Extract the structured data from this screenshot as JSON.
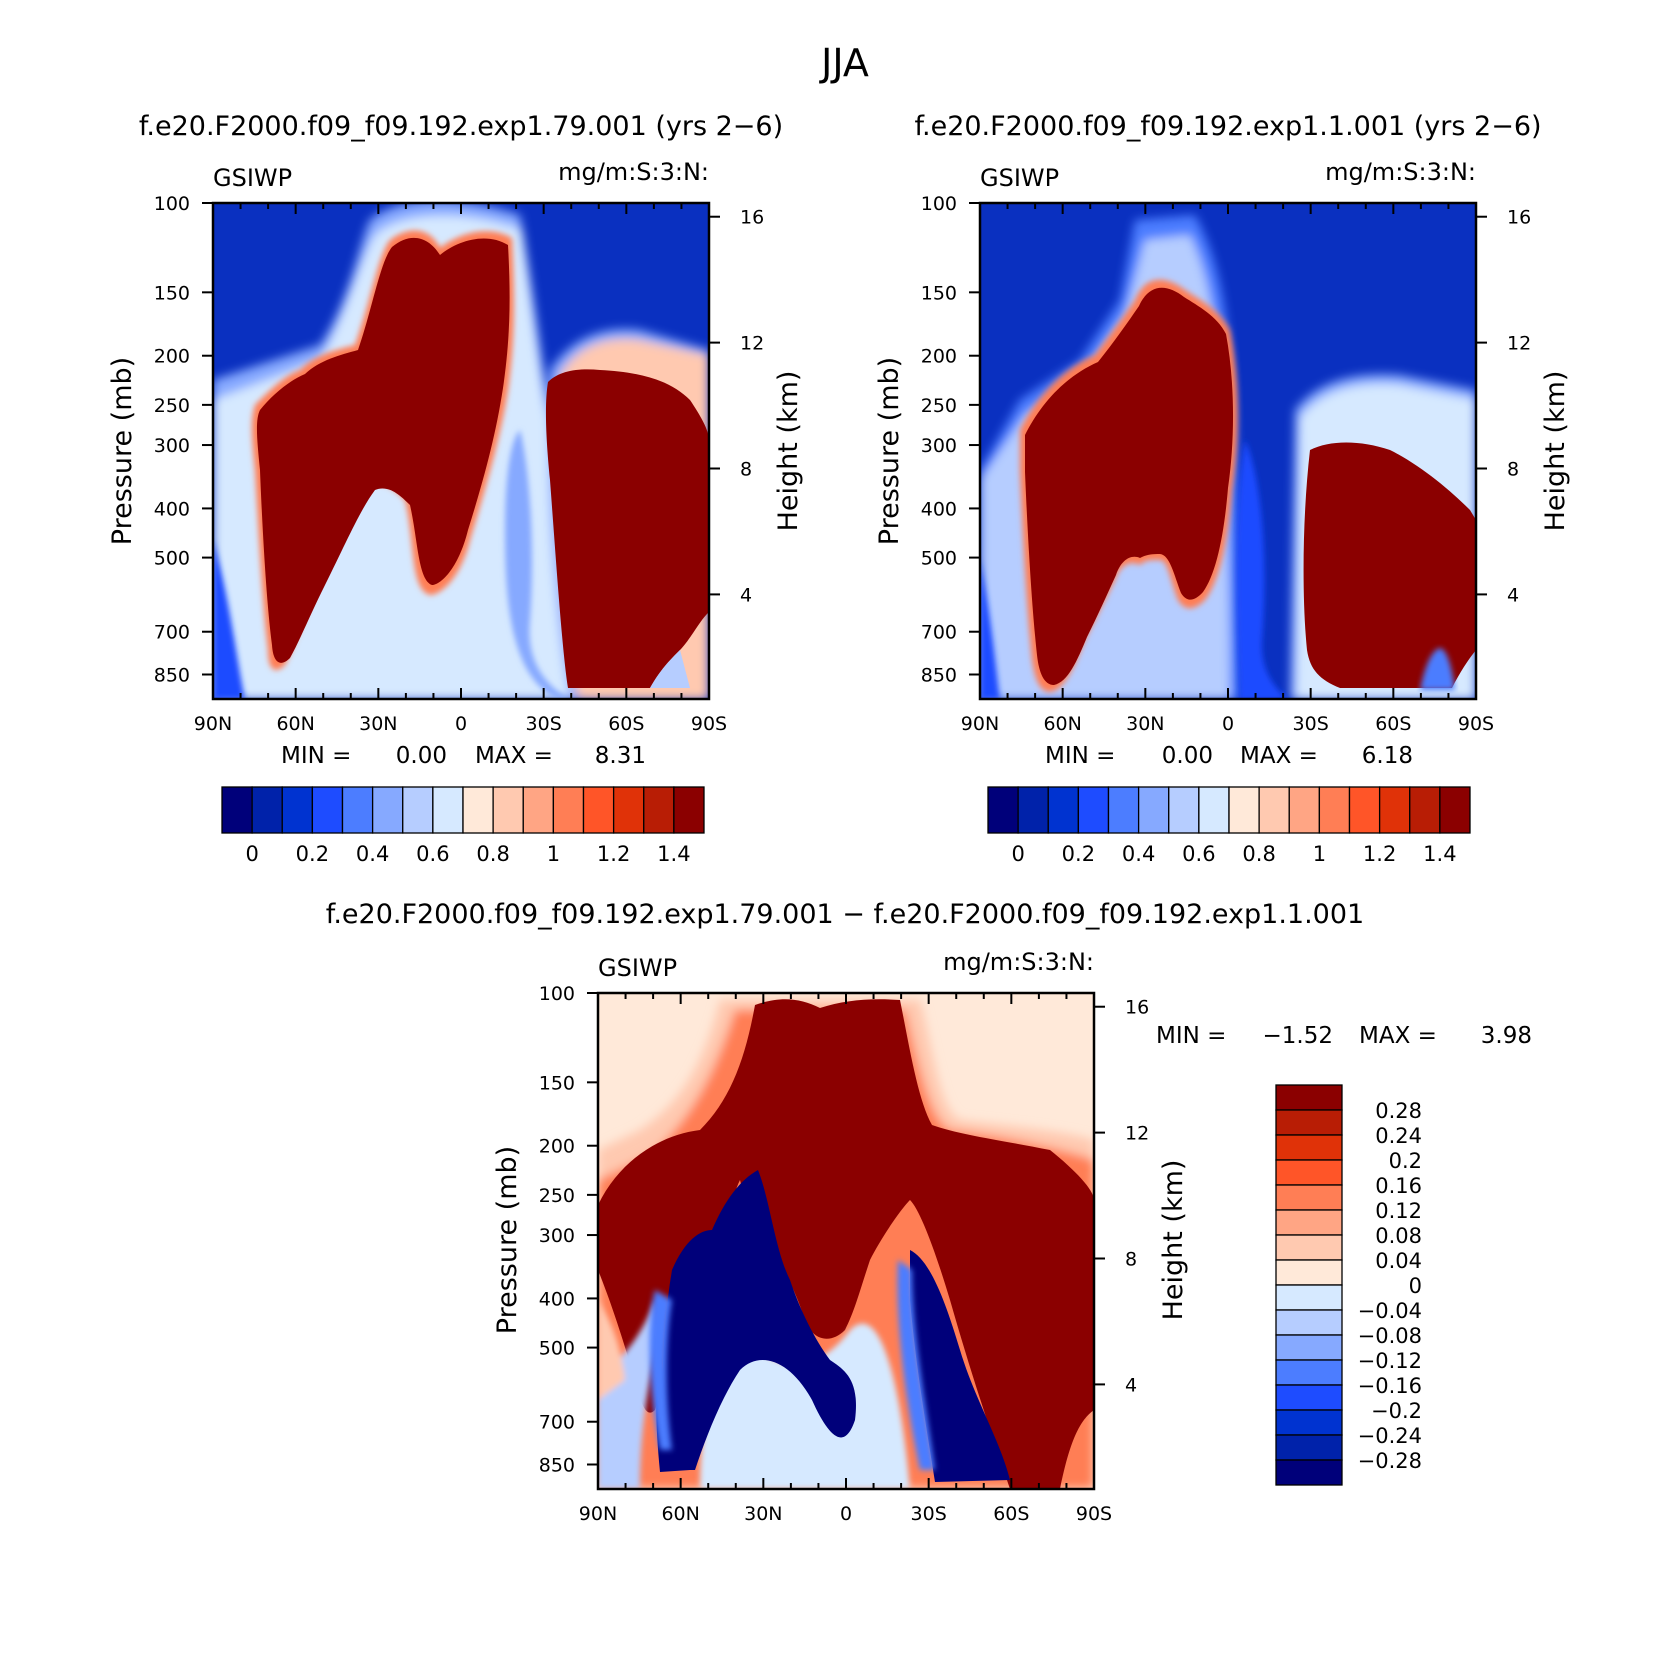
{
  "figure": {
    "title": "JJA",
    "diff_title": "f.e20.F2000.f09_f09.192.exp1.79.001 − f.e20.F2000.f09_f09.192.exp1.1.001"
  },
  "chart_data": [
    {
      "type": "heatmap",
      "title": "f.e20.F2000.f09_f09.192.exp1.79.001 (yrs 2−6)",
      "left_string": "GSIWP",
      "right_string": "mg/m:S:3:N:",
      "ylabel": "Pressure (mb)",
      "y2label": "Height (km)",
      "xticks": [
        "90N",
        "60N",
        "30N",
        "0",
        "30S",
        "60S",
        "90S"
      ],
      "yticks": [
        "100",
        "150",
        "200",
        "250",
        "300",
        "400",
        "500",
        "700",
        "850"
      ],
      "y2ticks": [
        "16",
        "12",
        "8",
        "4"
      ],
      "min_label": "MIN =",
      "min_value": "0.00",
      "max_label": "MAX =",
      "max_value": "8.31",
      "colorbar_ticks": [
        "0",
        "0.2",
        "0.4",
        "0.6",
        "0.8",
        "1",
        "1.2",
        "1.4"
      ],
      "colorbar_colors": [
        "#00007a",
        "#0022aa",
        "#0033d0",
        "#1e4cff",
        "#4c7dff",
        "#86a9ff",
        "#b6cdff",
        "#d6e9ff",
        "#ffe9d9",
        "#ffc9b0",
        "#ffa584",
        "#ff7e55",
        "#ff5528",
        "#e03208",
        "#b81d05",
        "#8b0000"
      ]
    },
    {
      "type": "heatmap",
      "title": "f.e20.F2000.f09_f09.192.exp1.1.001 (yrs 2−6)",
      "left_string": "GSIWP",
      "right_string": "mg/m:S:3:N:",
      "ylabel": "Pressure (mb)",
      "y2label": "Height (km)",
      "xticks": [
        "90N",
        "60N",
        "30N",
        "0",
        "30S",
        "60S",
        "90S"
      ],
      "yticks": [
        "100",
        "150",
        "200",
        "250",
        "300",
        "400",
        "500",
        "700",
        "850"
      ],
      "y2ticks": [
        "16",
        "12",
        "8",
        "4"
      ],
      "min_label": "MIN =",
      "min_value": "0.00",
      "max_label": "MAX =",
      "max_value": "6.18",
      "colorbar_ticks": [
        "0",
        "0.2",
        "0.4",
        "0.6",
        "0.8",
        "1",
        "1.2",
        "1.4"
      ],
      "colorbar_colors": [
        "#00007a",
        "#0022aa",
        "#0033d0",
        "#1e4cff",
        "#4c7dff",
        "#86a9ff",
        "#b6cdff",
        "#d6e9ff",
        "#ffe9d9",
        "#ffc9b0",
        "#ffa584",
        "#ff7e55",
        "#ff5528",
        "#e03208",
        "#b81d05",
        "#8b0000"
      ]
    },
    {
      "type": "heatmap",
      "title": "",
      "left_string": "GSIWP",
      "right_string": "mg/m:S:3:N:",
      "ylabel": "Pressure (mb)",
      "y2label": "Height (km)",
      "xticks": [
        "90N",
        "60N",
        "30N",
        "0",
        "30S",
        "60S",
        "90S"
      ],
      "yticks": [
        "100",
        "150",
        "200",
        "250",
        "300",
        "400",
        "500",
        "700",
        "850"
      ],
      "y2ticks": [
        "16",
        "12",
        "8",
        "4"
      ],
      "min_label": "MIN =",
      "min_value": "−1.52",
      "max_label": "MAX =",
      "max_value": "3.98",
      "colorbar_ticks": [
        "0.28",
        "0.24",
        "0.2",
        "0.16",
        "0.12",
        "0.08",
        "0.04",
        "0",
        "−0.04",
        "−0.08",
        "−0.12",
        "−0.16",
        "−0.2",
        "−0.24",
        "−0.28"
      ],
      "colorbar_colors": [
        "#8b0000",
        "#b81d05",
        "#e03208",
        "#ff5528",
        "#ff7e55",
        "#ffa584",
        "#ffc9b0",
        "#ffe9d9",
        "#d6e9ff",
        "#b6cdff",
        "#86a9ff",
        "#4c7dff",
        "#1e4cff",
        "#0033d0",
        "#0022aa",
        "#00007a"
      ]
    }
  ]
}
